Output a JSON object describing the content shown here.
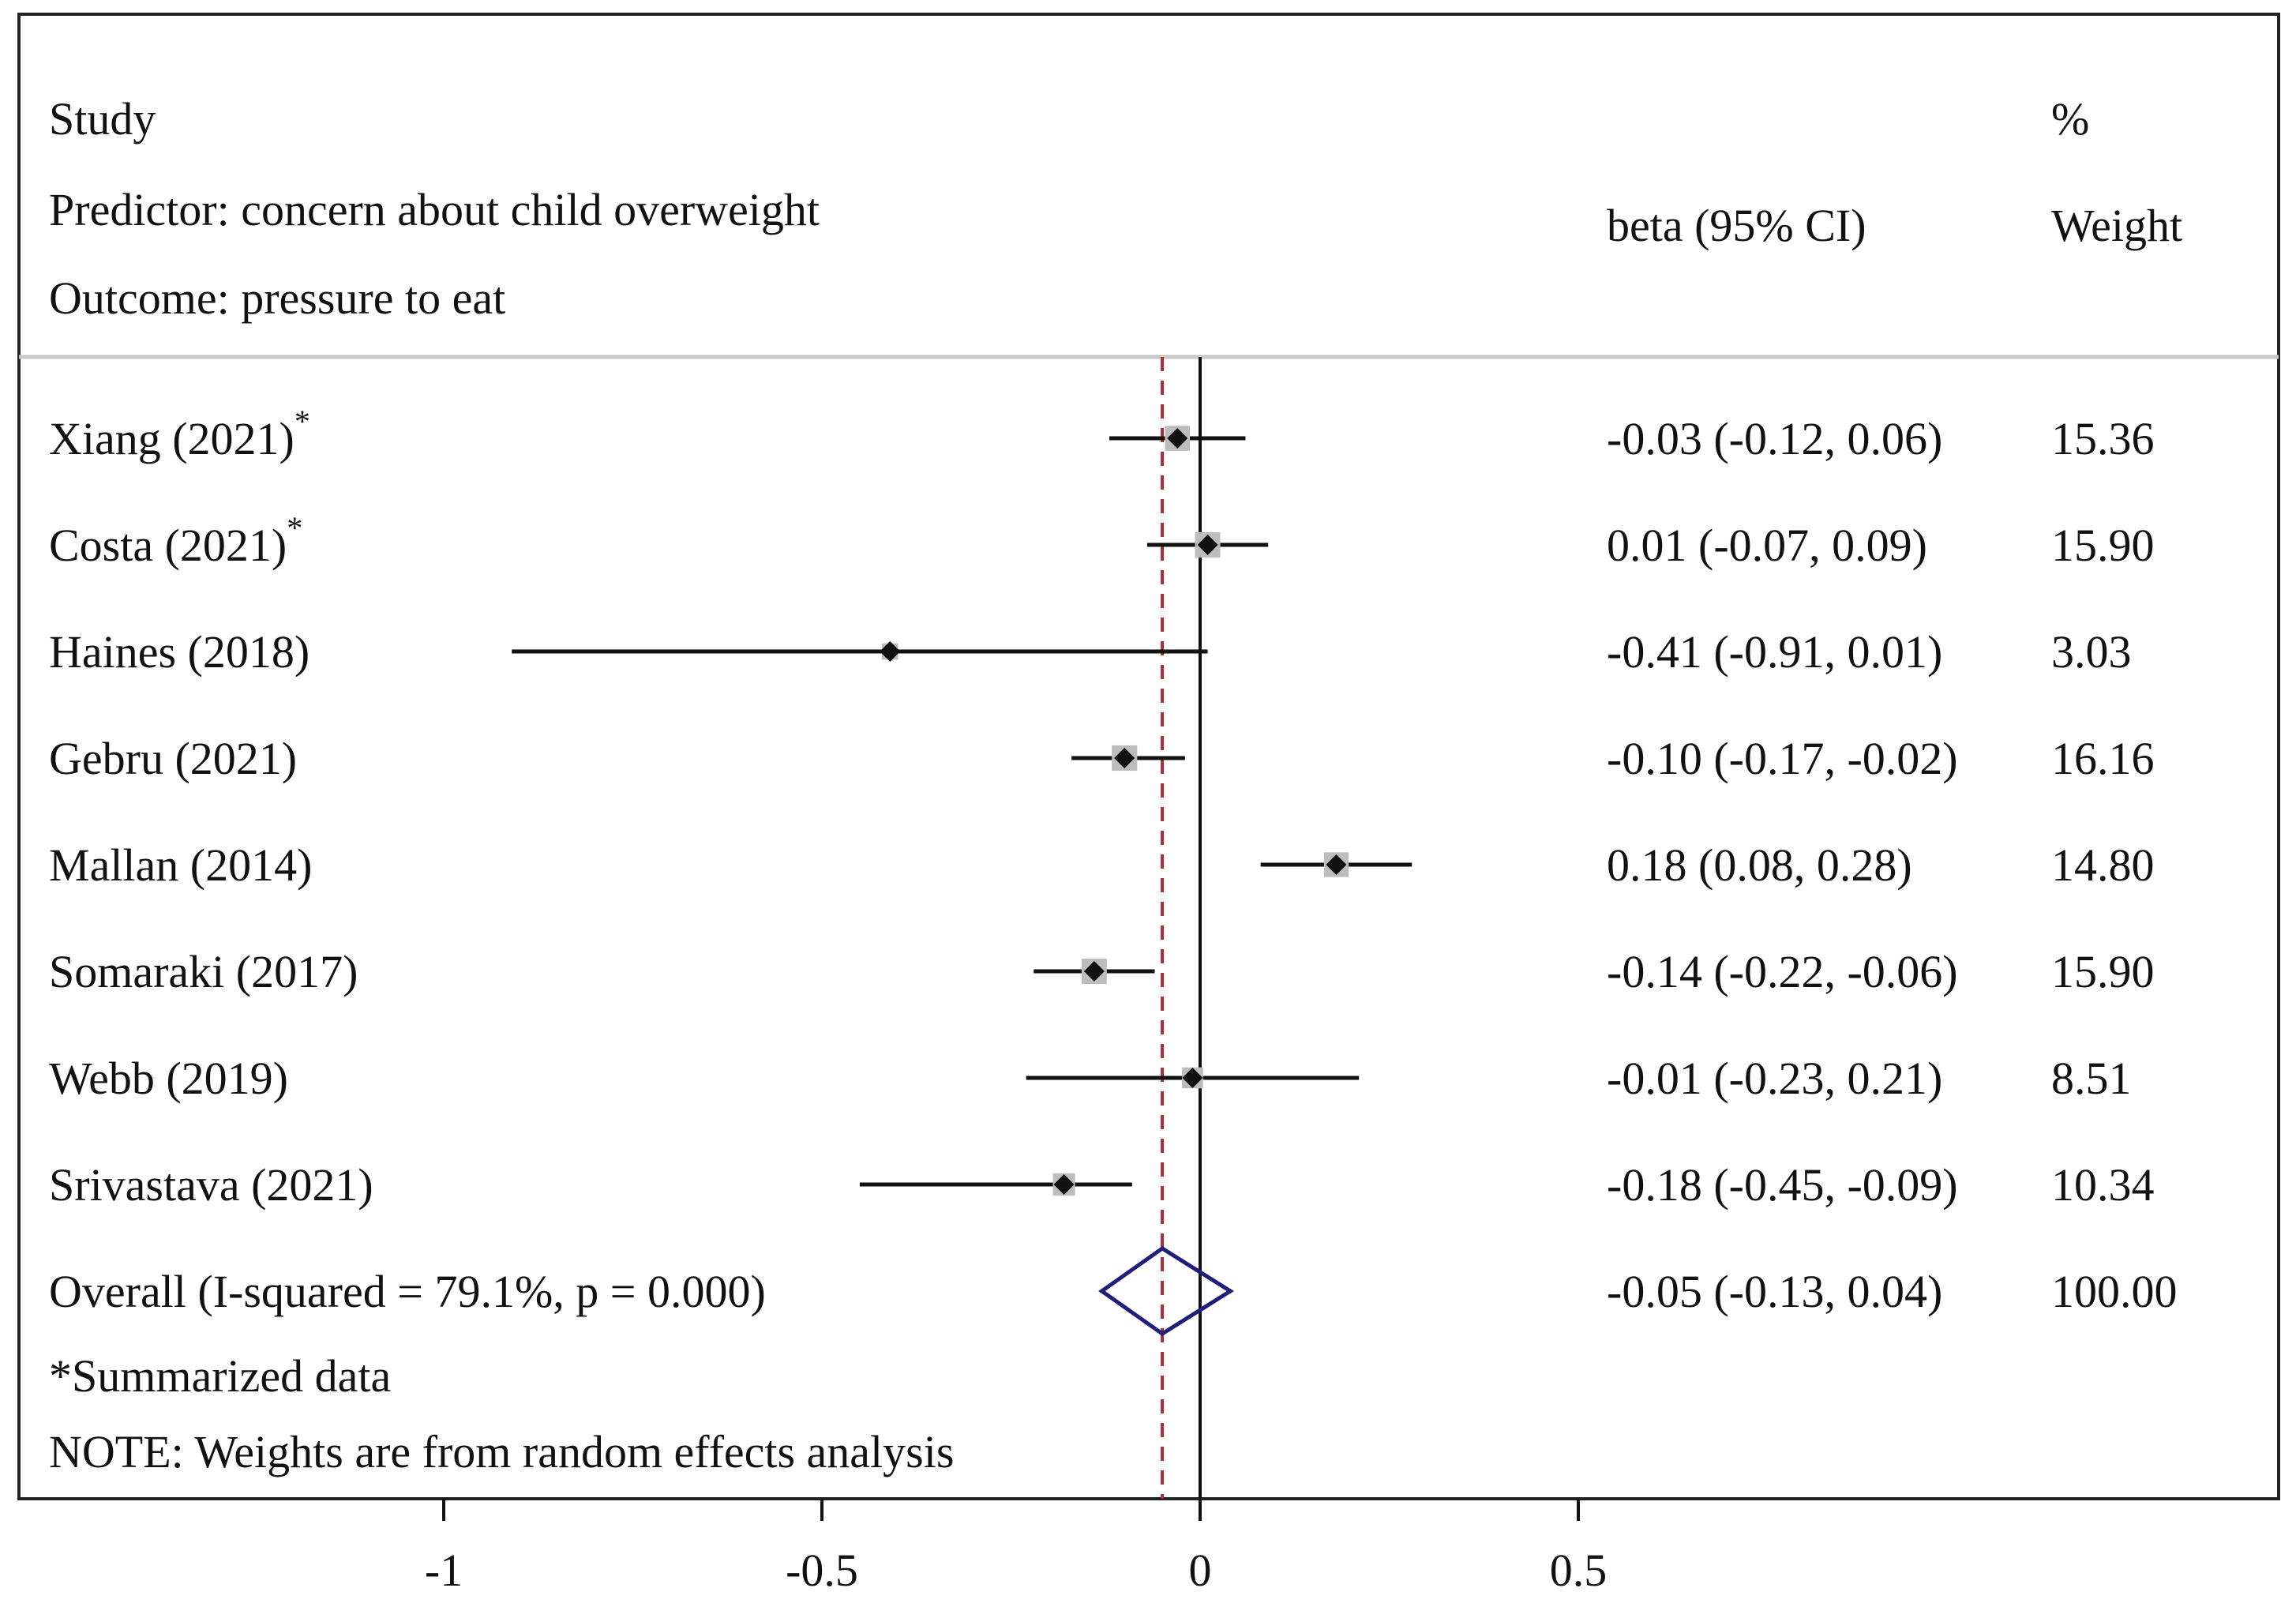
{
  "chart_data": {
    "type": "forest",
    "header": {
      "study": "Study",
      "predictor": "Predictor: concern about child overweight",
      "outcome": "Outcome: pressure to eat",
      "effect": "beta (95% CI)",
      "weight_top": "%",
      "weight_bottom": "Weight"
    },
    "studies": [
      {
        "name": "Xiang (2021)",
        "starred": true,
        "beta": -0.03,
        "lo": -0.12,
        "hi": 0.06,
        "ci_text": "-0.03 (-0.12, 0.06)",
        "weight": "15.36"
      },
      {
        "name": "Costa (2021)",
        "starred": true,
        "beta": 0.01,
        "lo": -0.07,
        "hi": 0.09,
        "ci_text": "0.01 (-0.07, 0.09)",
        "weight": "15.90"
      },
      {
        "name": "Haines (2018)",
        "starred": false,
        "beta": -0.41,
        "lo": -0.91,
        "hi": 0.01,
        "ci_text": "-0.41 (-0.91, 0.01)",
        "weight": "3.03"
      },
      {
        "name": "Gebru (2021)",
        "starred": false,
        "beta": -0.1,
        "lo": -0.17,
        "hi": -0.02,
        "ci_text": "-0.10 (-0.17, -0.02)",
        "weight": "16.16"
      },
      {
        "name": "Mallan (2014)",
        "starred": false,
        "beta": 0.18,
        "lo": 0.08,
        "hi": 0.28,
        "ci_text": "0.18 (0.08, 0.28)",
        "weight": "14.80"
      },
      {
        "name": "Somaraki (2017)",
        "starred": false,
        "beta": -0.14,
        "lo": -0.22,
        "hi": -0.06,
        "ci_text": "-0.14 (-0.22, -0.06)",
        "weight": "15.90"
      },
      {
        "name": "Webb (2019)",
        "starred": false,
        "beta": -0.01,
        "lo": -0.23,
        "hi": 0.21,
        "ci_text": "-0.01 (-0.23, 0.21)",
        "weight": "8.51"
      },
      {
        "name": "Srivastava (2021)",
        "starred": false,
        "beta": -0.18,
        "lo": -0.45,
        "hi": -0.09,
        "ci_text": "-0.18 (-0.45, -0.09)",
        "weight": "10.34"
      }
    ],
    "overall": {
      "label": "Overall  (I-squared = 79.1%, p = 0.000)",
      "beta": -0.05,
      "lo": -0.13,
      "hi": 0.04,
      "ci_text": "-0.05 (-0.13, 0.04)",
      "weight": "100.00"
    },
    "star_symbol": "*",
    "footnotes": [
      "*Summarized data",
      "NOTE: Weights are from random effects analysis"
    ],
    "x_ticks": [
      -1,
      -0.5,
      0,
      0.5
    ],
    "x_tick_labels": [
      "-1",
      "-0.5",
      "0",
      "0.5"
    ],
    "null_line": 0,
    "colors": {
      "overall_diamond": "#1f1f7a",
      "overall_line": "#a0303a",
      "weight_box": "#bdbdbd",
      "point": "#111111"
    }
  }
}
